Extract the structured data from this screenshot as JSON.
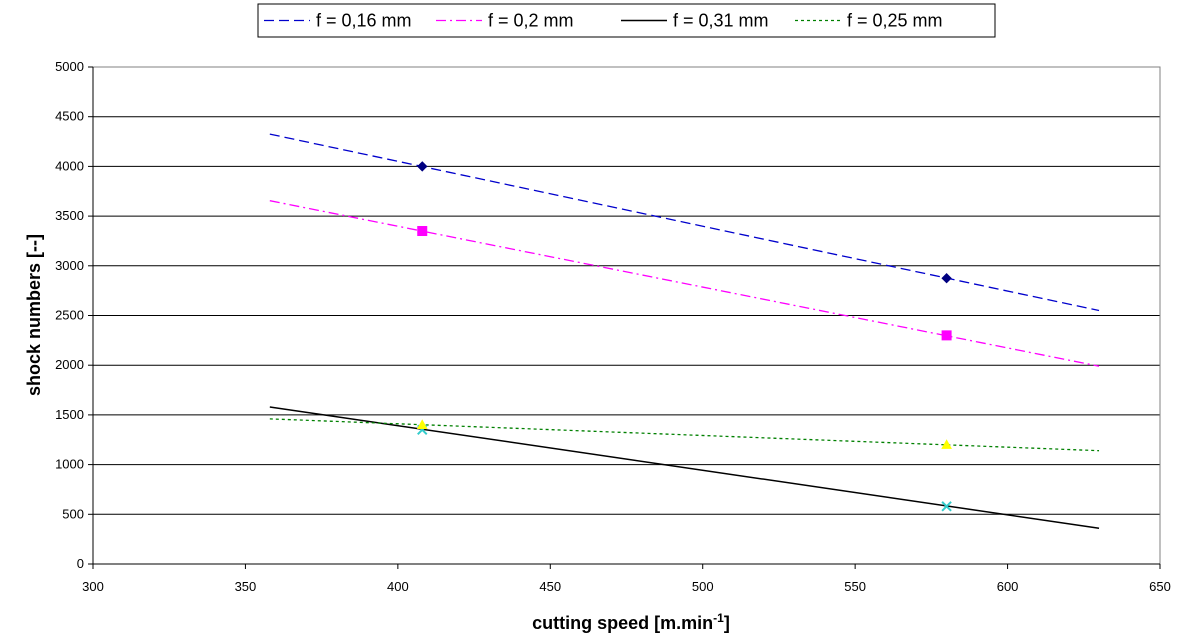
{
  "chart_data": {
    "type": "scatter",
    "xlabel": "cutting speed [m.min",
    "xlabel_sup": "-1",
    "xlabel_end": "]",
    "ylabel": "shock numbers [--]",
    "xlim": [
      300,
      650
    ],
    "ylim": [
      0,
      5000
    ],
    "x_ticks": [
      "300",
      "350",
      "400",
      "450",
      "500",
      "550",
      "600",
      "650"
    ],
    "y_ticks": [
      "0",
      "500",
      "1000",
      "1500",
      "2000",
      "2500",
      "3000",
      "3500",
      "4000",
      "4500",
      "5000"
    ],
    "grid": "horizontal",
    "legend_position": "top",
    "series": [
      {
        "name": "f = 0,16 mm",
        "marker": "diamond",
        "marker_color": "#000080",
        "line_color": "#0000cc",
        "line_style": "dashed",
        "points": [
          {
            "x": 408,
            "y": 4000
          },
          {
            "x": 580,
            "y": 2875
          }
        ],
        "trend": [
          {
            "x": 358,
            "y": 4325
          },
          {
            "x": 630,
            "y": 2550
          }
        ]
      },
      {
        "name": "f = 0,2 mm",
        "marker": "square",
        "marker_color": "#ff00ff",
        "line_color": "#ff00ff",
        "line_style": "dash-dot",
        "points": [
          {
            "x": 408,
            "y": 3350
          },
          {
            "x": 580,
            "y": 2300
          }
        ],
        "trend": [
          {
            "x": 358,
            "y": 3655
          },
          {
            "x": 630,
            "y": 1990
          }
        ]
      },
      {
        "name": "f = 0,31 mm",
        "marker": "cross",
        "marker_color": "#33cccc",
        "line_color": "#000000",
        "line_style": "solid",
        "points": [
          {
            "x": 408,
            "y": 1350
          },
          {
            "x": 580,
            "y": 580
          }
        ],
        "trend": [
          {
            "x": 358,
            "y": 1580
          },
          {
            "x": 630,
            "y": 360
          }
        ]
      },
      {
        "name": "f = 0,25 mm",
        "marker": "triangle",
        "marker_color": "#ffff00",
        "line_color": "#008000",
        "line_style": "dotted",
        "points": [
          {
            "x": 408,
            "y": 1400
          },
          {
            "x": 580,
            "y": 1200
          }
        ],
        "trend": [
          {
            "x": 358,
            "y": 1460
          },
          {
            "x": 630,
            "y": 1140
          }
        ]
      }
    ]
  }
}
